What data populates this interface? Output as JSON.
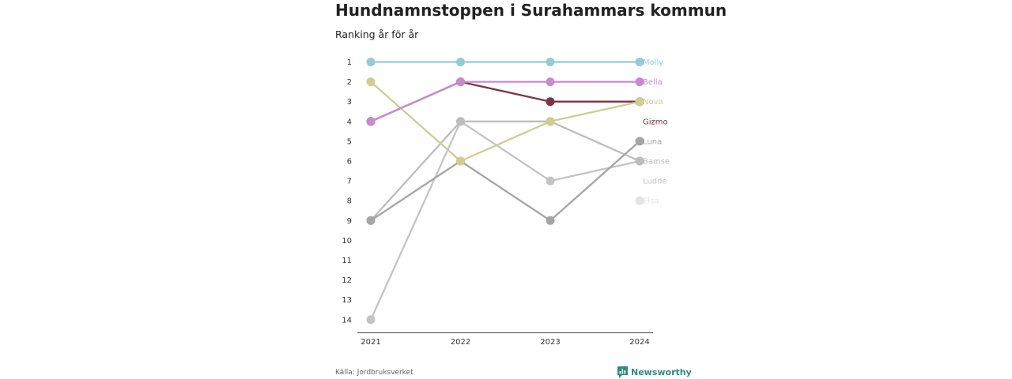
{
  "title": "Hundnamnstoppen i Surahammars kommun",
  "subtitle": "Ranking år för år",
  "source": "Källa: Jordbruksverket",
  "brand": "Newsworthy",
  "colors": {
    "brand": "#2e8b84"
  },
  "chart_data": {
    "type": "line",
    "x": [
      "2021",
      "2022",
      "2023",
      "2024"
    ],
    "y_ticks": [
      1,
      2,
      3,
      4,
      5,
      6,
      7,
      8,
      9,
      10,
      11,
      12,
      13,
      14
    ],
    "ylim": [
      1,
      14
    ],
    "y_reversed": true,
    "grid": false,
    "series": [
      {
        "name": "Elsa",
        "color": "#e3e3e3",
        "values": [
          null,
          null,
          null,
          8
        ]
      },
      {
        "name": "Ludde",
        "color": "#c4c4c4",
        "values": [
          14,
          4,
          7,
          6
        ]
      },
      {
        "name": "Bamse",
        "color": "#bdbdbd",
        "values": [
          9,
          4,
          4,
          6
        ]
      },
      {
        "name": "Luna",
        "color": "#a5a5a5",
        "values": [
          9,
          6,
          9,
          5
        ]
      },
      {
        "name": "Gizmo",
        "color": "#7b3546",
        "values": [
          4,
          2,
          3,
          3
        ]
      },
      {
        "name": "Nova",
        "color": "#cdcd94",
        "values": [
          2,
          6,
          4,
          3
        ]
      },
      {
        "name": "Bella",
        "color": "#c98bcd",
        "values": [
          4,
          2,
          2,
          2
        ]
      },
      {
        "name": "Molly",
        "color": "#93cdcf",
        "values": [
          1,
          1,
          1,
          1
        ]
      }
    ],
    "label_order": [
      "Molly",
      "Bella",
      "Nova",
      "Gizmo",
      "Luna",
      "Bamse",
      "Ludde",
      "Elsa"
    ]
  }
}
